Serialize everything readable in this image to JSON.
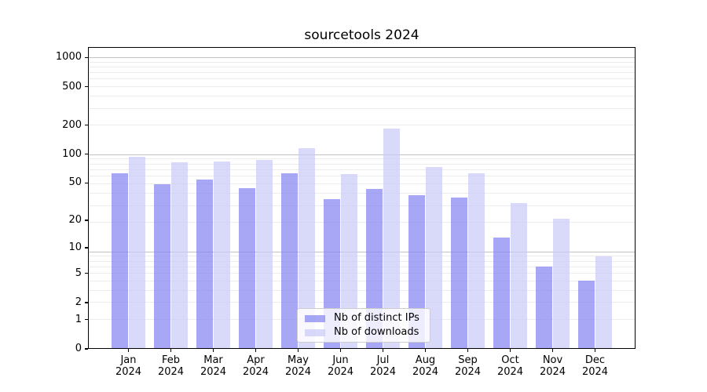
{
  "figure": {
    "background": "#ffffff"
  },
  "chart_data": {
    "type": "bar",
    "title": "sourcetools 2024",
    "categories": [
      "Jan",
      "Feb",
      "Mar",
      "Apr",
      "May",
      "Jun",
      "Jul",
      "Aug",
      "Sep",
      "Oct",
      "Nov",
      "Dec"
    ],
    "x_tick_year": "2024",
    "series": [
      {
        "name": "Nb of distinct IPs",
        "color": "#8585f1",
        "alpha": 0.72,
        "values": [
          63,
          49,
          54,
          44,
          63,
          34,
          43,
          37,
          35,
          13,
          6,
          4
        ]
      },
      {
        "name": "Nb of downloads",
        "color": "#cacaf7",
        "alpha": 0.72,
        "values": [
          94,
          83,
          84,
          88,
          115,
          62,
          185,
          74,
          63,
          31,
          21,
          8
        ]
      }
    ],
    "yscale": "log1p",
    "ylim": [
      0,
      1280
    ],
    "y_ticks": [
      0,
      1,
      2,
      5,
      10,
      20,
      50,
      100,
      200,
      500,
      1000
    ],
    "grid": {
      "on": true,
      "minor_color": "#ececec",
      "major_color": "#c2c2c2",
      "minor_gridlines_at": [
        1,
        2,
        3,
        4,
        5,
        6,
        7,
        8,
        19,
        29,
        39,
        49,
        59,
        69,
        79,
        89,
        199,
        299,
        399,
        499,
        599,
        699,
        799,
        899
      ],
      "major_gridlines_at": [
        9,
        99,
        999
      ]
    },
    "legend": {
      "position": "lower center inside plot",
      "entries": [
        "Nb of distinct IPs",
        "Nb of downloads"
      ]
    },
    "spine_color": "#000000"
  }
}
